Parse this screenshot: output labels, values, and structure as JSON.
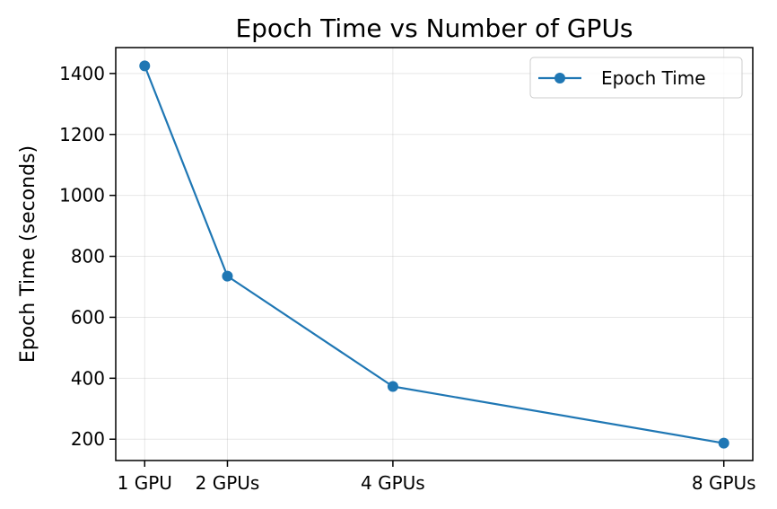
{
  "chart_data": {
    "type": "line",
    "title": "Epoch Time vs Number of GPUs",
    "xlabel": "",
    "ylabel": "Epoch Time (seconds)",
    "x": [
      1,
      2,
      4,
      8
    ],
    "xtick_labels": [
      "1 GPU",
      "2 GPUs",
      "4 GPUs",
      "8 GPUs"
    ],
    "xlim": [
      0.65,
      8.35
    ],
    "ylim": [
      130,
      1485
    ],
    "yticks": [
      200,
      400,
      600,
      800,
      1000,
      1200,
      1400
    ],
    "grid": true,
    "legend": "top-right",
    "series": [
      {
        "name": "Epoch Time",
        "values": [
          1425,
          735,
          373,
          187
        ],
        "color": "#1f77b4",
        "marker": "circle"
      }
    ]
  }
}
